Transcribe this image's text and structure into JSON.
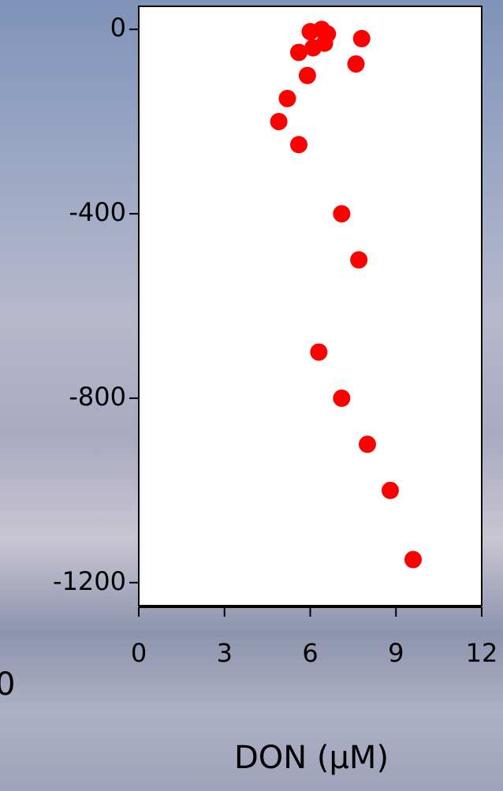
{
  "chart_data": {
    "type": "scatter",
    "x_label": "DON (μM)",
    "annotation": "0",
    "x": [
      6.0,
      6.4,
      6.6,
      6.5,
      6.1,
      7.8,
      5.6,
      7.6,
      5.9,
      5.2,
      4.9,
      5.6,
      7.1,
      7.7,
      6.3,
      7.1,
      8.0,
      8.8,
      9.6
    ],
    "y": [
      -5,
      0,
      -10,
      -30,
      -40,
      -20,
      -50,
      -75,
      -100,
      -150,
      -200,
      -250,
      -400,
      -500,
      -700,
      -800,
      -900,
      -1000,
      -1150
    ],
    "color": "#ff0000",
    "xlim": [
      0,
      12
    ],
    "xticks": [
      0,
      3,
      6,
      9,
      12
    ],
    "ylim": [
      -1250,
      50
    ],
    "yticks": [
      0,
      -400,
      -800,
      -1200
    ]
  }
}
